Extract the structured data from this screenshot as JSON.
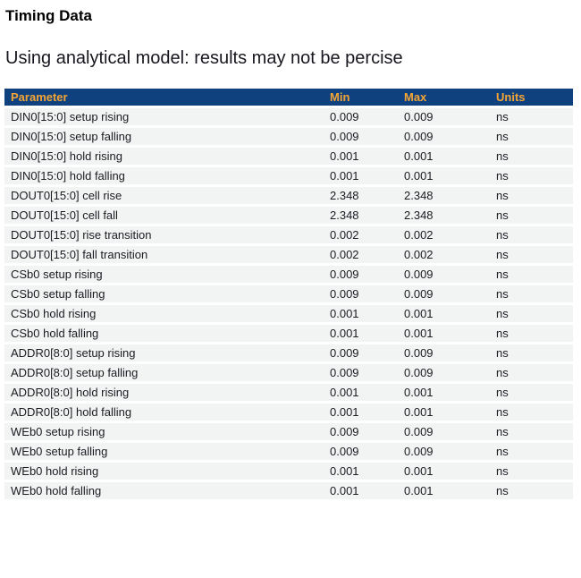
{
  "page": {
    "title": "Timing Data",
    "subtitle": "Using analytical model: results may not be percise"
  },
  "table": {
    "columns": {
      "parameter": "Parameter",
      "min": "Min",
      "max": "Max",
      "units": "Units"
    },
    "rows": [
      {
        "param": "DIN0[15:0] setup rising",
        "min": "0.009",
        "max": "0.009",
        "units": "ns"
      },
      {
        "param": "DIN0[15:0] setup falling",
        "min": "0.009",
        "max": "0.009",
        "units": "ns"
      },
      {
        "param": "DIN0[15:0] hold rising",
        "min": "0.001",
        "max": "0.001",
        "units": "ns"
      },
      {
        "param": "DIN0[15:0] hold falling",
        "min": "0.001",
        "max": "0.001",
        "units": "ns"
      },
      {
        "param": "DOUT0[15:0] cell rise",
        "min": "2.348",
        "max": "2.348",
        "units": "ns"
      },
      {
        "param": "DOUT0[15:0] cell fall",
        "min": "2.348",
        "max": "2.348",
        "units": "ns"
      },
      {
        "param": "DOUT0[15:0] rise transition",
        "min": "0.002",
        "max": "0.002",
        "units": "ns"
      },
      {
        "param": "DOUT0[15:0] fall transition",
        "min": "0.002",
        "max": "0.002",
        "units": "ns"
      },
      {
        "param": "CSb0 setup rising",
        "min": "0.009",
        "max": "0.009",
        "units": "ns"
      },
      {
        "param": "CSb0 setup falling",
        "min": "0.009",
        "max": "0.009",
        "units": "ns"
      },
      {
        "param": "CSb0 hold rising",
        "min": "0.001",
        "max": "0.001",
        "units": "ns"
      },
      {
        "param": "CSb0 hold falling",
        "min": "0.001",
        "max": "0.001",
        "units": "ns"
      },
      {
        "param": "ADDR0[8:0] setup rising",
        "min": "0.009",
        "max": "0.009",
        "units": "ns"
      },
      {
        "param": "ADDR0[8:0] setup falling",
        "min": "0.009",
        "max": "0.009",
        "units": "ns"
      },
      {
        "param": "ADDR0[8:0] hold rising",
        "min": "0.001",
        "max": "0.001",
        "units": "ns"
      },
      {
        "param": "ADDR0[8:0] hold falling",
        "min": "0.001",
        "max": "0.001",
        "units": "ns"
      },
      {
        "param": "WEb0 setup rising",
        "min": "0.009",
        "max": "0.009",
        "units": "ns"
      },
      {
        "param": "WEb0 setup falling",
        "min": "0.009",
        "max": "0.009",
        "units": "ns"
      },
      {
        "param": "WEb0 hold rising",
        "min": "0.001",
        "max": "0.001",
        "units": "ns"
      },
      {
        "param": "WEb0 hold falling",
        "min": "0.001",
        "max": "0.001",
        "units": "ns"
      }
    ]
  },
  "colors": {
    "header_bg": "#10417f",
    "header_text": "#f3a536",
    "row_bg": "#f2f3f3",
    "row_separator": "#ffffff",
    "body_text": "#1b1c22"
  }
}
